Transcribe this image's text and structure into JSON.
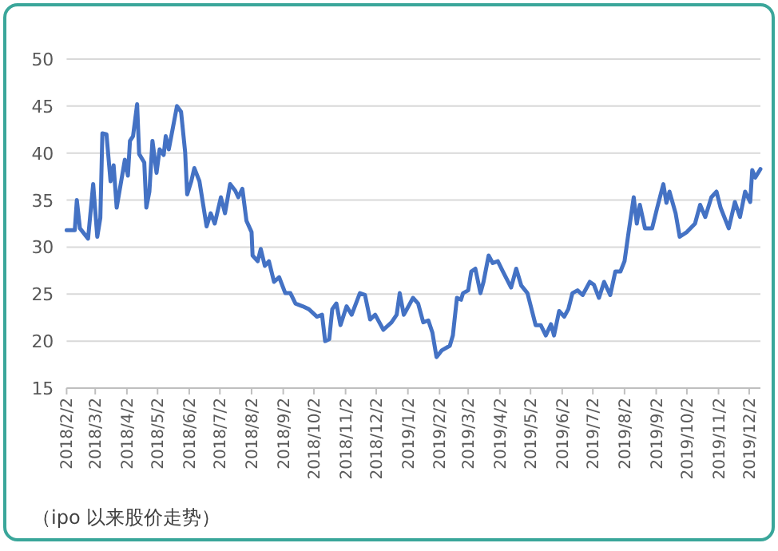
{
  "chart_data": {
    "type": "line",
    "x": [
      "2018-02-02",
      "2018-02-10",
      "2018-02-12",
      "2018-02-15",
      "2018-02-23",
      "2018-02-28",
      "2018-03-04",
      "2018-03-07",
      "2018-03-09",
      "2018-03-13",
      "2018-03-17",
      "2018-03-20",
      "2018-03-23",
      "2018-03-31",
      "2018-04-03",
      "2018-04-05",
      "2018-04-08",
      "2018-04-12",
      "2018-04-14",
      "2018-04-19",
      "2018-04-21",
      "2018-04-24",
      "2018-04-27",
      "2018-05-01",
      "2018-05-04",
      "2018-05-08",
      "2018-05-10",
      "2018-05-13",
      "2018-05-17",
      "2018-05-21",
      "2018-05-25",
      "2018-05-29",
      "2018-05-31",
      "2018-06-04",
      "2018-06-07",
      "2018-06-12",
      "2018-06-19",
      "2018-06-23",
      "2018-06-27",
      "2018-07-03",
      "2018-07-07",
      "2018-07-12",
      "2018-07-17",
      "2018-07-20",
      "2018-07-24",
      "2018-07-28",
      "2018-08-02",
      "2018-08-03",
      "2018-08-08",
      "2018-08-11",
      "2018-08-15",
      "2018-08-19",
      "2018-08-24",
      "2018-08-29",
      "2018-09-04",
      "2018-09-09",
      "2018-09-14",
      "2018-09-21",
      "2018-09-27",
      "2018-10-05",
      "2018-10-10",
      "2018-10-13",
      "2018-10-17",
      "2018-10-20",
      "2018-10-24",
      "2018-10-28",
      "2018-11-03",
      "2018-11-08",
      "2018-11-16",
      "2018-11-21",
      "2018-11-26",
      "2018-12-01",
      "2018-12-09",
      "2018-12-17",
      "2018-12-22",
      "2018-12-25",
      "2018-12-29",
      "2019-01-07",
      "2019-01-12",
      "2019-01-17",
      "2019-01-22",
      "2019-01-26",
      "2019-01-30",
      "2019-02-04",
      "2019-02-12",
      "2019-02-15",
      "2019-02-19",
      "2019-02-23",
      "2019-02-25",
      "2019-03-02",
      "2019-03-05",
      "2019-03-09",
      "2019-03-14",
      "2019-03-17",
      "2019-03-22",
      "2019-03-26",
      "2019-03-31",
      "2019-04-05",
      "2019-04-13",
      "2019-04-18",
      "2019-04-23",
      "2019-04-29",
      "2019-05-07",
      "2019-05-12",
      "2019-05-17",
      "2019-05-22",
      "2019-05-25",
      "2019-05-30",
      "2019-06-04",
      "2019-06-08",
      "2019-06-12",
      "2019-06-17",
      "2019-06-22",
      "2019-06-29",
      "2019-07-03",
      "2019-07-08",
      "2019-07-13",
      "2019-07-19",
      "2019-07-24",
      "2019-07-29",
      "2019-08-02",
      "2019-08-06",
      "2019-08-11",
      "2019-08-14",
      "2019-08-17",
      "2019-08-22",
      "2019-08-29",
      "2019-09-03",
      "2019-09-09",
      "2019-09-12",
      "2019-09-15",
      "2019-09-21",
      "2019-09-25",
      "2019-10-02",
      "2019-10-10",
      "2019-10-15",
      "2019-10-20",
      "2019-10-26",
      "2019-10-31",
      "2019-11-04",
      "2019-11-12",
      "2019-11-18",
      "2019-11-23",
      "2019-11-28",
      "2019-12-03",
      "2019-12-05",
      "2019-12-08",
      "2019-12-13"
    ],
    "values": [
      31.8,
      31.8,
      35.0,
      32.0,
      30.9,
      36.7,
      31.1,
      33.1,
      42.1,
      42.0,
      37.0,
      38.7,
      34.2,
      39.3,
      37.6,
      41.3,
      41.8,
      45.2,
      39.9,
      39.0,
      34.2,
      35.9,
      41.3,
      37.9,
      40.4,
      39.8,
      41.8,
      40.4,
      42.7,
      45.0,
      44.4,
      40.1,
      35.6,
      37.0,
      38.4,
      37.0,
      32.2,
      33.6,
      32.5,
      35.3,
      33.6,
      36.7,
      36.0,
      35.3,
      36.2,
      32.8,
      31.6,
      29.1,
      28.5,
      29.8,
      28.0,
      28.5,
      26.3,
      26.8,
      25.1,
      25.1,
      24.0,
      23.7,
      23.4,
      22.6,
      22.8,
      20.0,
      20.2,
      23.4,
      24.0,
      21.7,
      23.7,
      22.8,
      25.1,
      24.9,
      22.3,
      22.8,
      21.2,
      22.0,
      22.8,
      25.1,
      22.8,
      24.6,
      24.0,
      22.0,
      22.2,
      20.9,
      18.3,
      19.0,
      19.5,
      20.6,
      24.6,
      24.4,
      25.1,
      25.4,
      27.4,
      27.7,
      25.1,
      26.3,
      29.1,
      28.3,
      28.5,
      27.4,
      25.7,
      27.7,
      25.9,
      25.1,
      21.7,
      21.7,
      20.6,
      21.8,
      20.6,
      23.2,
      22.6,
      23.4,
      25.1,
      25.4,
      24.9,
      26.3,
      26.0,
      24.6,
      26.3,
      24.9,
      27.4,
      27.4,
      28.5,
      31.6,
      35.3,
      32.5,
      34.5,
      32.0,
      32.0,
      34.2,
      36.7,
      34.7,
      35.9,
      33.6,
      31.1,
      31.6,
      32.5,
      34.5,
      33.2,
      35.3,
      35.9,
      34.2,
      32.0,
      34.8,
      33.2,
      35.9,
      34.8,
      38.2,
      37.4,
      38.3
    ],
    "color": "#4472c4",
    "xlim": [
      "2018-02-02",
      "2019-12-13"
    ],
    "xticks": [
      {
        "value": "2018-02-02",
        "label": "2018/2/2"
      },
      {
        "value": "2018-03-02",
        "label": "2018/3/2"
      },
      {
        "value": "2018-04-02",
        "label": "2018/4/2"
      },
      {
        "value": "2018-05-02",
        "label": "2018/5/2"
      },
      {
        "value": "2018-06-02",
        "label": "2018/6/2"
      },
      {
        "value": "2018-07-02",
        "label": "2018/7/2"
      },
      {
        "value": "2018-08-02",
        "label": "2018/8/2"
      },
      {
        "value": "2018-09-02",
        "label": "2018/9/2"
      },
      {
        "value": "2018-10-02",
        "label": "2018/10/2"
      },
      {
        "value": "2018-11-02",
        "label": "2018/11/2"
      },
      {
        "value": "2018-12-02",
        "label": "2018/12/2"
      },
      {
        "value": "2019-01-02",
        "label": "2019/1/2"
      },
      {
        "value": "2019-02-02",
        "label": "2019/2/2"
      },
      {
        "value": "2019-03-02",
        "label": "2019/3/2"
      },
      {
        "value": "2019-04-02",
        "label": "2019/4/2"
      },
      {
        "value": "2019-05-02",
        "label": "2019/5/2"
      },
      {
        "value": "2019-06-02",
        "label": "2019/6/2"
      },
      {
        "value": "2019-07-02",
        "label": "2019/7/2"
      },
      {
        "value": "2019-08-02",
        "label": "2019/8/2"
      },
      {
        "value": "2019-09-02",
        "label": "2019/9/2"
      },
      {
        "value": "2019-10-02",
        "label": "2019/10/2"
      },
      {
        "value": "2019-11-02",
        "label": "2019/11/2"
      },
      {
        "value": "2019-12-02",
        "label": "2019/12/2"
      }
    ],
    "ylim": [
      15,
      50
    ],
    "yticks": [
      15,
      20,
      25,
      30,
      35,
      40,
      45,
      50
    ],
    "grid": "y",
    "annotations": [
      "（ipo 以来股价走势）"
    ]
  }
}
